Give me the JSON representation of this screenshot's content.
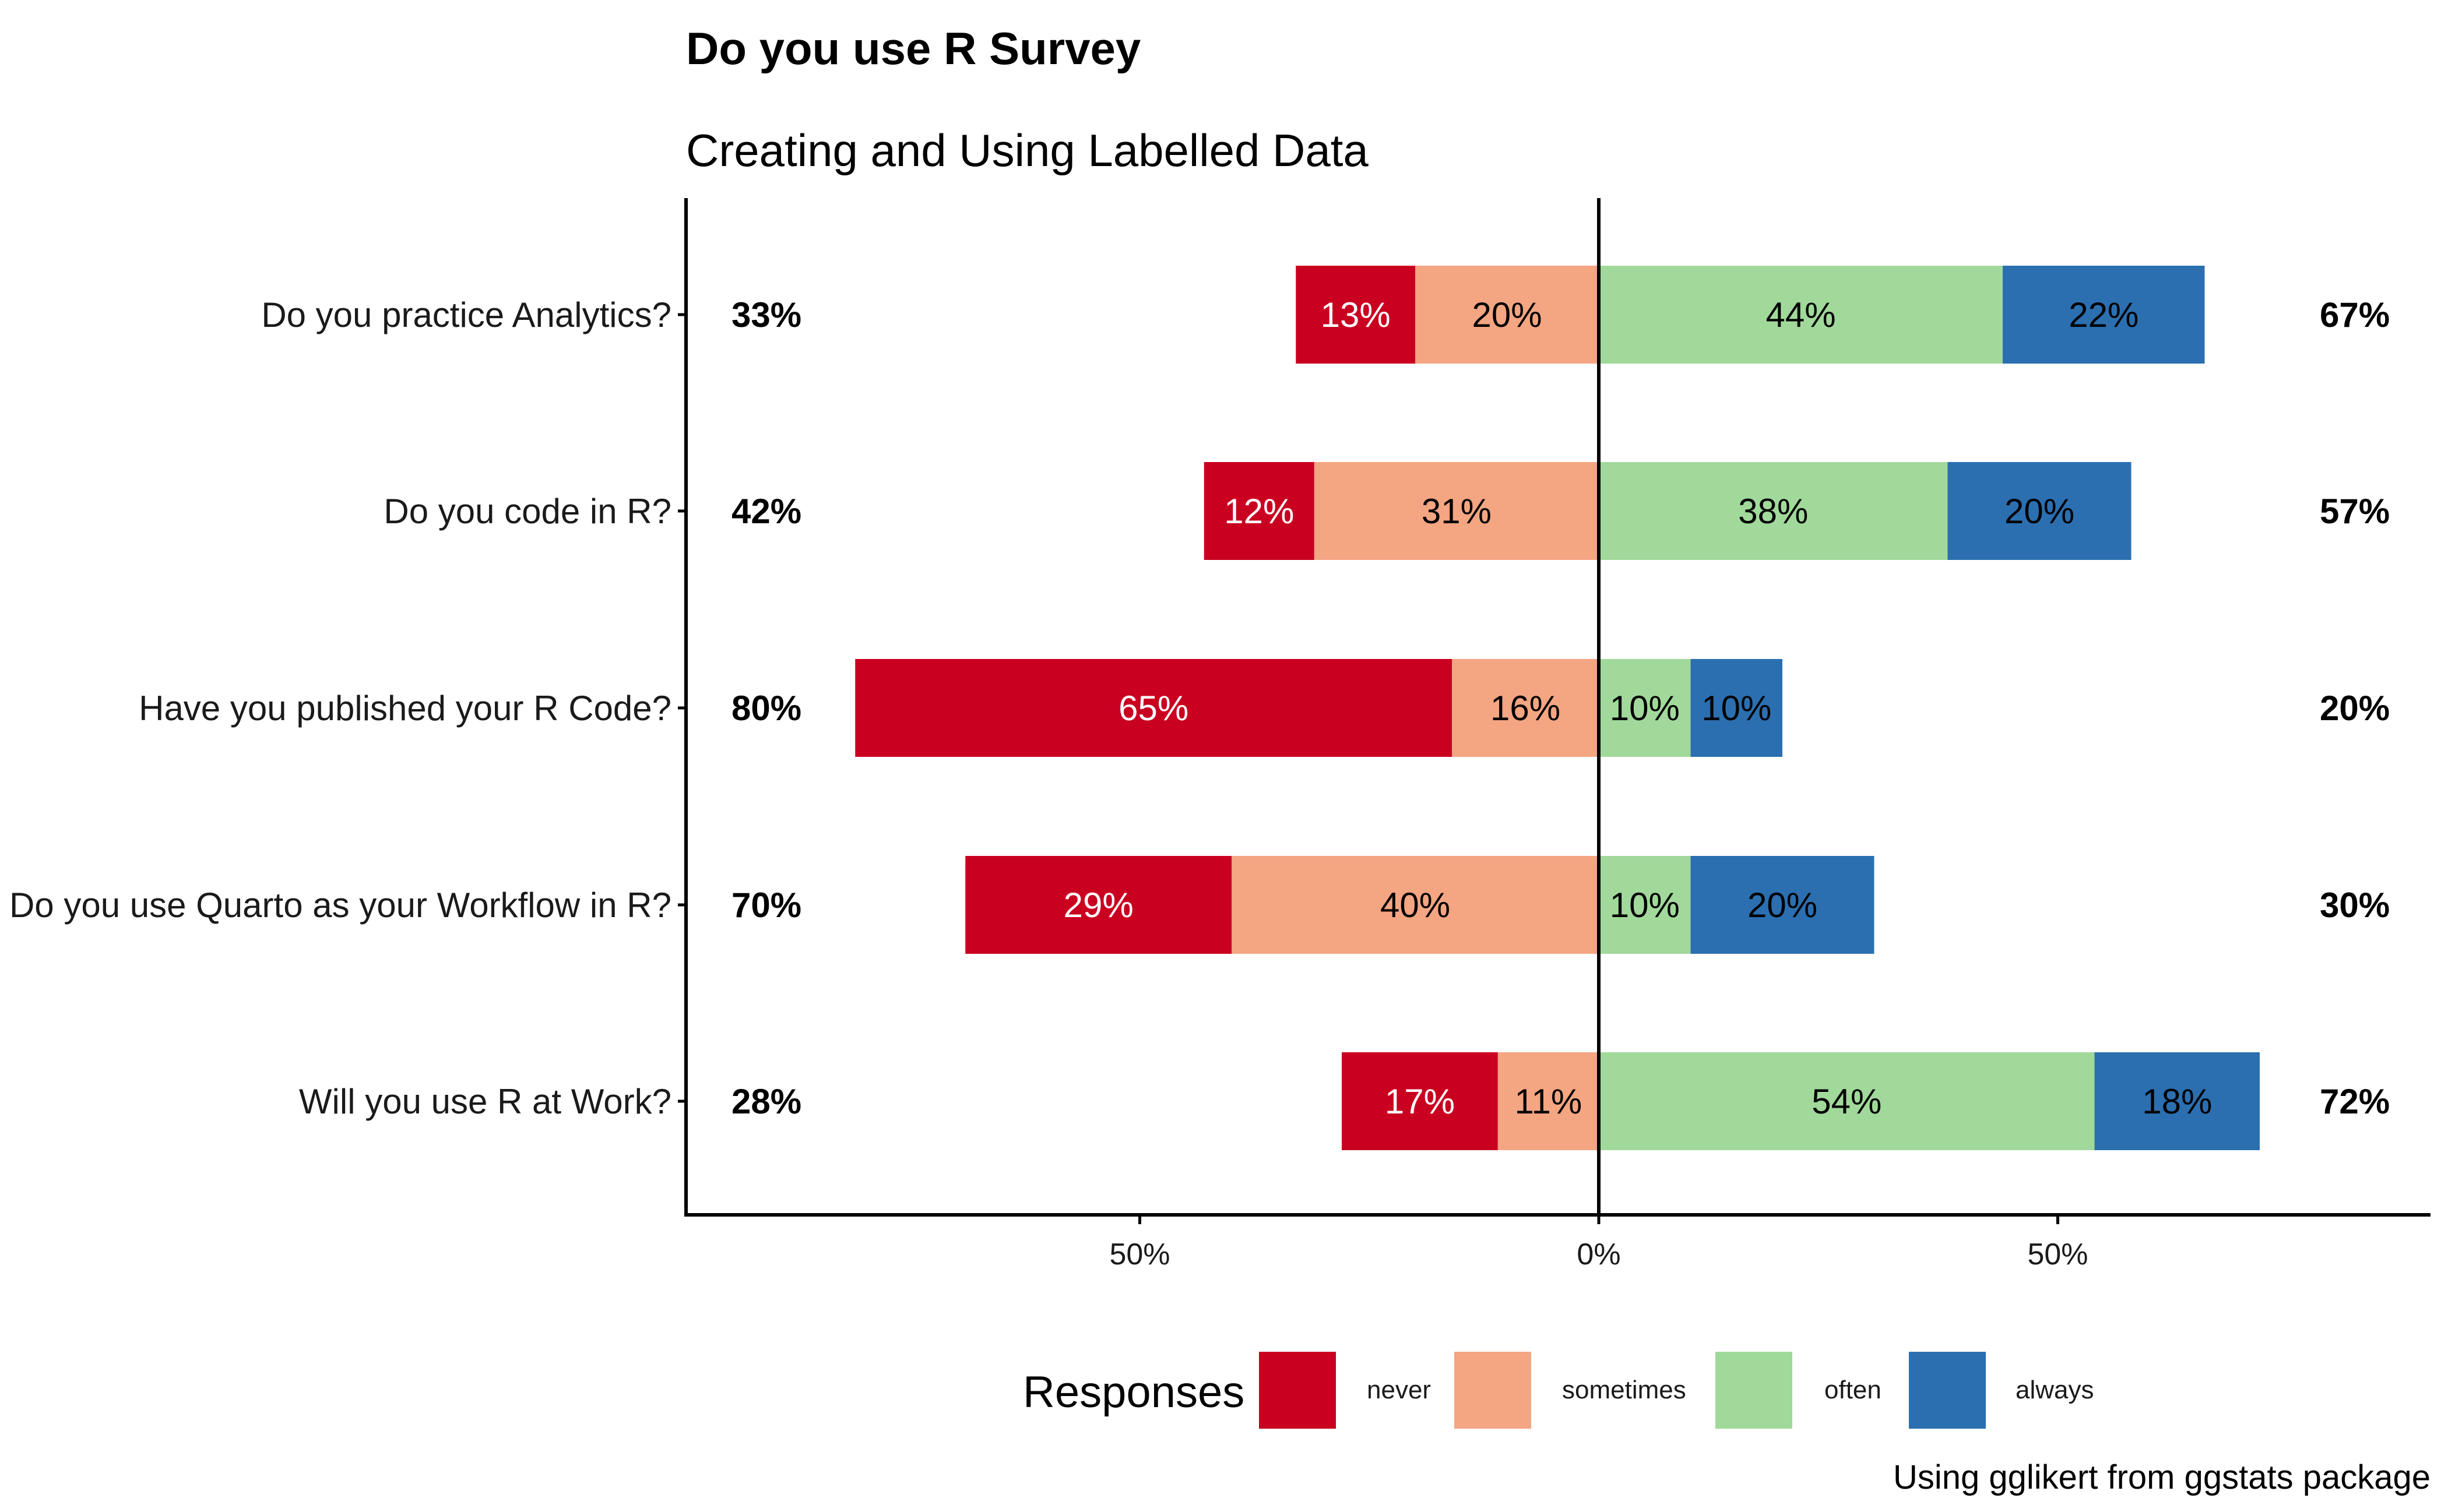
{
  "chart_data": {
    "type": "bar",
    "orientation": "horizontal-diverging",
    "title": "Do you use R Survey",
    "subtitle": "Creating and Using Labelled Data",
    "caption": "Using gglikert from ggstats package",
    "legend_title": "Responses",
    "legend_position": "bottom",
    "levels": [
      "never",
      "sometimes",
      "often",
      "always"
    ],
    "colors": {
      "never": "#ca0020",
      "sometimes": "#f4a582",
      "often": "#a1d99b",
      "always": "#2b6fb0"
    },
    "label_colors": {
      "never": "#ffffff",
      "sometimes": "#000000",
      "often": "#000000",
      "always": "#000000"
    },
    "categories": [
      "Do you practice Analytics?",
      "Do you code in R?",
      "Have you published your R Code?",
      "Do you use Quarto as your Workflow in R?",
      "Will you use R at Work?"
    ],
    "series": [
      {
        "name": "never",
        "values": [
          13,
          12,
          65,
          29,
          17
        ],
        "labels": [
          "13%",
          "12%",
          "65%",
          "29%",
          "17%"
        ]
      },
      {
        "name": "sometimes",
        "values": [
          20,
          31,
          16,
          40,
          11
        ],
        "labels": [
          "20%",
          "31%",
          "16%",
          "40%",
          "11%"
        ]
      },
      {
        "name": "often",
        "values": [
          44,
          38,
          10,
          10,
          54
        ],
        "labels": [
          "44%",
          "38%",
          "10%",
          "10%",
          "54%"
        ]
      },
      {
        "name": "always",
        "values": [
          22,
          20,
          10,
          20,
          18
        ],
        "labels": [
          "22%",
          "20%",
          "10%",
          "20%",
          "18%"
        ]
      }
    ],
    "totals_left": [
      "33%",
      "42%",
      "80%",
      "70%",
      "28%"
    ],
    "totals_right": [
      "67%",
      "57%",
      "20%",
      "30%",
      "72%"
    ],
    "xlim": [
      -100,
      92
    ],
    "x_ticks": [
      -50,
      0,
      50
    ],
    "x_tick_labels": [
      "50%",
      "0%",
      "50%"
    ],
    "grid": false
  }
}
